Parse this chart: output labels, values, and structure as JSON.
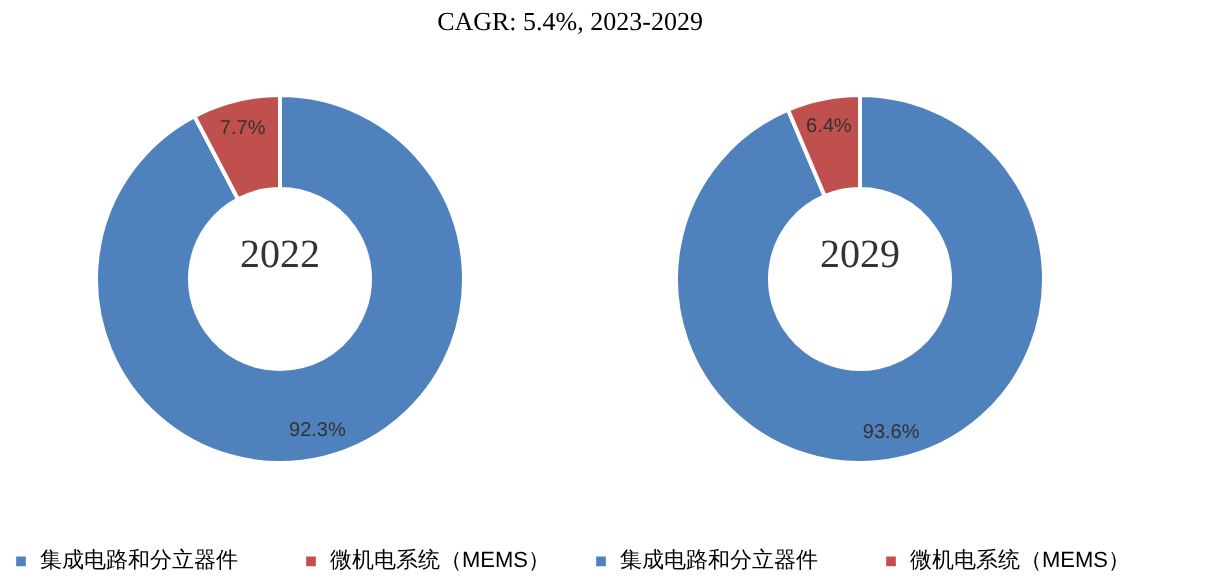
{
  "chart_data": [
    {
      "type": "donut",
      "title": "CAGR:   5.4%, 2023-2029",
      "annotations": [
        "2022"
      ],
      "categories": [
        "集成电路和分立器件",
        "微机电系统（MEMS）"
      ],
      "values": [
        92.3,
        7.7
      ],
      "colors": [
        "#4f81bd",
        "#c0504d"
      ],
      "value_labels": [
        "92.3%",
        "7.7%"
      ],
      "legend": "bottom"
    },
    {
      "type": "donut",
      "annotations": [
        "2029"
      ],
      "categories": [
        "集成电路和分立器件",
        "微机电系统（MEMS）"
      ],
      "values": [
        93.6,
        6.4
      ],
      "colors": [
        "#4f81bd",
        "#c0504d"
      ],
      "value_labels": [
        "93.6%",
        "6.4%"
      ],
      "legend": "bottom"
    }
  ]
}
